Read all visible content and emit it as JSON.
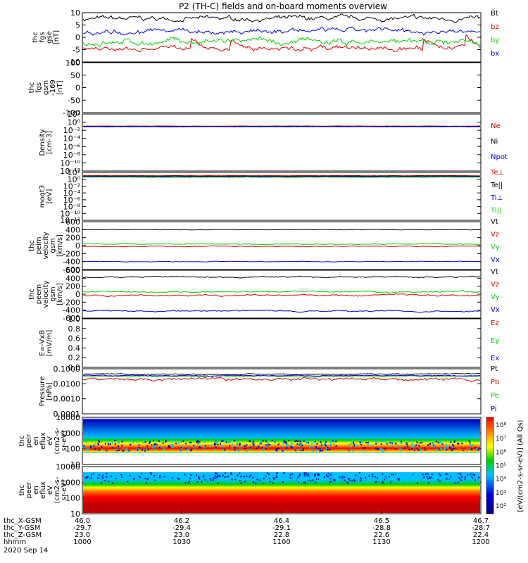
{
  "title": "P2 (TH-C) fields and on-board moments overview",
  "colors": {
    "black": "#000000",
    "red": "#e00000",
    "green": "#00d000",
    "blue": "#0000e0",
    "cyan": "#00c0ff"
  },
  "footer": {
    "rows": [
      {
        "label": "thc_X-GSM",
        "values": [
          "46.0",
          "46.2",
          "46.4",
          "46.5",
          "46.7"
        ]
      },
      {
        "label": "thc_Y-GSM",
        "values": [
          "-29.7",
          "-29.4",
          "-29.1",
          "-28.8",
          "-28.7"
        ]
      },
      {
        "label": "thc_Z-GSM",
        "values": [
          "23.0",
          "23.0",
          "22.8",
          "22.6",
          "22.4"
        ]
      },
      {
        "label": "hhmm",
        "values": [
          "1000",
          "1030",
          "1100",
          "1130",
          "1200"
        ]
      }
    ],
    "date": "2020 Sep 14"
  },
  "chart_data": [
    {
      "type": "line",
      "ylabel": [
        "thc",
        "fgs",
        "gse",
        "[nT]"
      ],
      "ylim": [
        -10,
        10
      ],
      "yticks": [
        "10",
        "5",
        "0",
        "-5",
        "-10"
      ],
      "series": [
        {
          "name": "Bt",
          "color": "black",
          "level": 7.5,
          "noise": 1.5
        },
        {
          "name": "bz",
          "color": "red",
          "level": -4.5,
          "noise": 1.5,
          "spikeUp": 0.2
        },
        {
          "name": "by",
          "color": "green",
          "level": -2,
          "noise": 2
        },
        {
          "name": "bx",
          "color": "blue",
          "level": 2.5,
          "noise": 1.5
        }
      ]
    },
    {
      "type": "line",
      "ylabel": [
        "thc",
        "fgs",
        "gsm",
        "-169",
        "[nT]"
      ],
      "ylim": [
        -130,
        110
      ],
      "yticks": [
        "100",
        "50",
        "0",
        "-50",
        "-100"
      ],
      "series": []
    },
    {
      "type": "line",
      "ylabel": [
        "Density",
        "[cm-3]"
      ],
      "ylim": [
        -14,
        4
      ],
      "yticks": [
        "10²",
        "10⁰",
        "10⁻²",
        "10⁻⁴",
        "10⁻⁶",
        "10⁻⁸",
        "10⁻¹⁰",
        "10⁻¹²"
      ],
      "series": [
        {
          "name": "Ne",
          "color": "red",
          "level": 0.2,
          "noise": 0.05
        },
        {
          "name": "Ni",
          "color": "black",
          "level": 0,
          "noise": 0.05
        },
        {
          "name": "Npot",
          "color": "blue",
          "level": 0.1,
          "noise": 0.05
        }
      ]
    },
    {
      "type": "line",
      "ylabel": [
        "moqt3",
        "[eV]"
      ],
      "ylim": [
        -14,
        4
      ],
      "yticks": [
        "10²",
        "10⁰",
        "10⁻²",
        "10⁻⁴",
        "10⁻⁶",
        "10⁻⁸",
        "10⁻¹⁰",
        "10⁻¹²"
      ],
      "series": [
        {
          "name": "Te⊥",
          "color": "red",
          "level": 2.8,
          "noise": 0.1
        },
        {
          "name": "Te||",
          "color": "black",
          "level": 2.6,
          "noise": 0.1
        },
        {
          "name": "Ti⊥",
          "color": "blue",
          "level": 2.4,
          "noise": 0.1
        },
        {
          "name": "Ti||",
          "color": "green",
          "level": 2.2,
          "noise": 0.1
        }
      ]
    },
    {
      "type": "line",
      "ylabel": [
        "thc",
        "peim",
        "velocity",
        "gsm",
        "[km/s]"
      ],
      "ylim": [
        -600,
        600
      ],
      "yticks": [
        "600",
        "400",
        "200",
        "0",
        "-200",
        "-400",
        "-600"
      ],
      "series": [
        {
          "name": "Vt",
          "color": "black",
          "level": 400,
          "noise": 10
        },
        {
          "name": "Vz",
          "color": "red",
          "level": -20,
          "noise": 15
        },
        {
          "name": "Vy",
          "color": "green",
          "level": 40,
          "noise": 15
        },
        {
          "name": "Vx",
          "color": "blue",
          "level": -400,
          "noise": 10
        }
      ]
    },
    {
      "type": "line",
      "ylabel": [
        "thc",
        "peem",
        "velocity",
        "gsm",
        "[km/s]"
      ],
      "ylim": [
        -600,
        600
      ],
      "yticks": [
        "600",
        "400",
        "200",
        "0",
        "-200",
        "-400",
        "-600"
      ],
      "series": [
        {
          "name": "Vt",
          "color": "black",
          "level": 430,
          "noise": 25
        },
        {
          "name": "Vz",
          "color": "red",
          "level": -30,
          "noise": 30
        },
        {
          "name": "Vy",
          "color": "green",
          "level": 60,
          "noise": 25
        },
        {
          "name": "Vx",
          "color": "blue",
          "level": -420,
          "noise": 25
        }
      ]
    },
    {
      "type": "line",
      "ylabel": [
        "E=-VxB",
        "[mV/m]"
      ],
      "ylim": [
        0,
        1
      ],
      "yticks": [
        "1.0",
        "0.8",
        "0.6",
        "0.4",
        "0.2",
        "0.0"
      ],
      "series": [
        {
          "name": "Ez",
          "color": "red"
        },
        {
          "name": "Ey",
          "color": "green"
        },
        {
          "name": "Ex",
          "color": "blue"
        }
      ]
    },
    {
      "type": "line",
      "ylabel": [
        "Pressure",
        "[nPa]"
      ],
      "ylim": [
        -4,
        -1
      ],
      "yticks": [
        "0.1000",
        "0.0100",
        "0.0010",
        "0.0001"
      ],
      "series": [
        {
          "name": "Pt",
          "color": "black",
          "level": -1.35,
          "noise": 0.05
        },
        {
          "name": "Pb",
          "color": "red",
          "level": -1.7,
          "noise": 0.15
        },
        {
          "name": "Pe",
          "color": "green",
          "level": -1.5,
          "noise": 0.05
        },
        {
          "name": "Pi",
          "color": "blue",
          "level": -1.45,
          "noise": 0.05
        }
      ]
    },
    {
      "type": "heatmap",
      "ylabel": [
        "thc",
        "peir",
        "en",
        "eflux",
        "eV",
        "(cm2-s-",
        "sr-eV)"
      ],
      "yticks": [
        "10000",
        "1000",
        "100",
        "10"
      ],
      "profile": "ion"
    },
    {
      "type": "heatmap",
      "ylabel": [
        "thc",
        "peer",
        "en",
        "eflux",
        "eV",
        "(cm2-s-",
        "sr-eV)"
      ],
      "yticks": [
        "10000",
        "1000",
        "100",
        "10"
      ],
      "profile": "electron"
    }
  ],
  "colorbar": {
    "ticks": [
      "10⁸",
      "10⁷",
      "10⁶",
      "10⁵",
      "10⁴",
      "10³",
      "10²"
    ],
    "label": "[eV/(cm2-s-sr-eV)] (All Qs)"
  }
}
